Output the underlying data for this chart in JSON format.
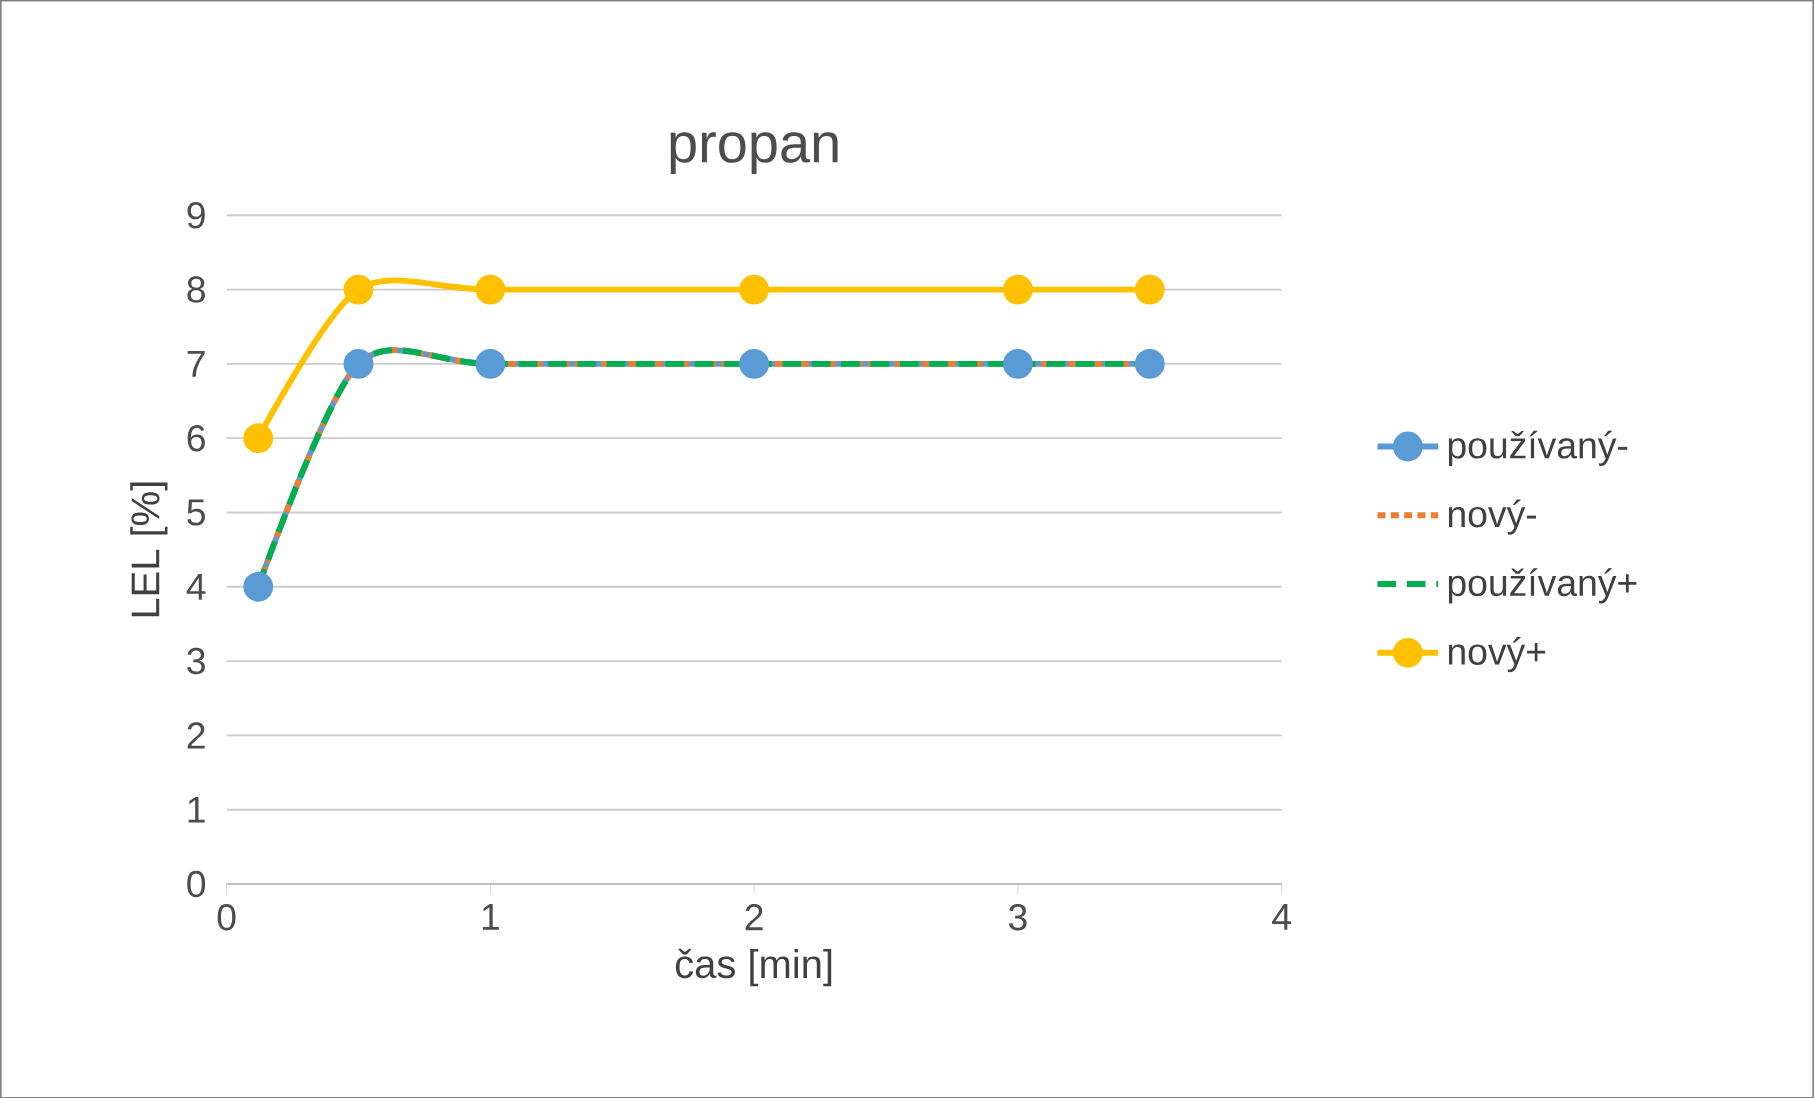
{
  "chart_data": {
    "type": "line",
    "title": "propan",
    "xlabel": "čas [min]",
    "ylabel": "LEL [%]",
    "x": [
      0.12,
      0.5,
      1,
      2,
      3,
      3.5
    ],
    "series": [
      {
        "name": "používaný-",
        "color": "#5b9bd5",
        "values": [
          4,
          7,
          7,
          7,
          7,
          7
        ],
        "marker": "circle",
        "line_style": "solid"
      },
      {
        "name": "nový-",
        "color": "#ed7d31",
        "values": [
          4,
          7,
          7,
          7,
          7,
          7
        ],
        "marker": "none",
        "line_style": "dotted"
      },
      {
        "name": "používaný+",
        "color": "#00b050",
        "values": [
          4,
          7,
          7,
          7,
          7,
          7
        ],
        "marker": "none",
        "line_style": "dashed"
      },
      {
        "name": "nový+",
        "color": "#ffc000",
        "values": [
          6,
          8,
          8,
          8,
          8,
          8
        ],
        "marker": "circle",
        "line_style": "solid"
      }
    ],
    "xlim": [
      0,
      4
    ],
    "ylim": [
      0,
      9
    ],
    "xticks": [
      0,
      1,
      2,
      3,
      4
    ],
    "yticks": [
      0,
      1,
      2,
      3,
      4,
      5,
      6,
      7,
      8,
      9
    ],
    "grid": "y",
    "legend": "right"
  }
}
